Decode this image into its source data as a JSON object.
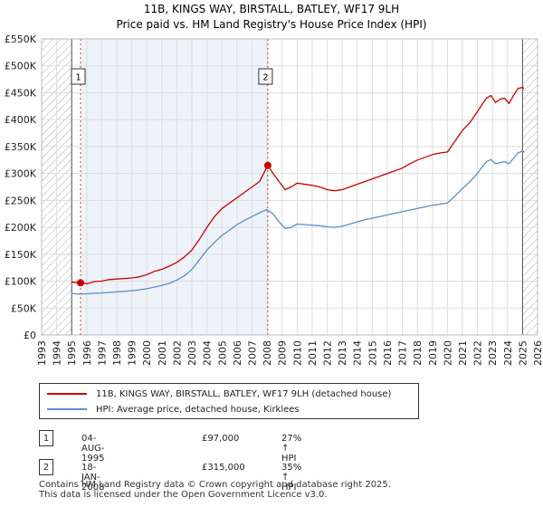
{
  "chart_data": {
    "type": "line",
    "title": "11B, KINGS WAY, BIRSTALL, BATLEY, WF17 9LH",
    "subtitle": "Price paid vs. HM Land Registry's House Price Index (HPI)",
    "xlim": [
      1993,
      2026
    ],
    "ylim": [
      0,
      550000
    ],
    "xticks": [
      "1993",
      "1994",
      "1995",
      "1996",
      "1997",
      "1998",
      "1999",
      "2000",
      "2001",
      "2002",
      "2003",
      "2004",
      "2005",
      "2006",
      "2007",
      "2008",
      "2009",
      "2010",
      "2011",
      "2012",
      "2013",
      "2014",
      "2015",
      "2016",
      "2017",
      "2018",
      "2019",
      "2020",
      "2021",
      "2022",
      "2023",
      "2024",
      "2025",
      "2026"
    ],
    "yticks": [
      "£0",
      "£50K",
      "£100K",
      "£150K",
      "£200K",
      "£250K",
      "£300K",
      "£350K",
      "£400K",
      "£450K",
      "£500K",
      "£550K"
    ],
    "hatch_before": 1995.0,
    "hatch_after": 2025.0,
    "series": [
      {
        "name": "11B, KINGS WAY, BIRSTALL, BATLEY, WF17 9LH (detached house)",
        "color": "#cc0000",
        "x": [
          1995.0,
          1995.59,
          1996.0,
          1996.5,
          1997.0,
          1997.5,
          1998.0,
          1998.5,
          1999.0,
          1999.5,
          2000.0,
          2000.5,
          2001.0,
          2001.5,
          2002.0,
          2002.5,
          2003.0,
          2003.5,
          2004.0,
          2004.5,
          2005.0,
          2005.5,
          2006.0,
          2006.5,
          2007.0,
          2007.5,
          2008.05,
          2008.4,
          2008.8,
          2009.2,
          2009.6,
          2010.0,
          2010.5,
          2011.0,
          2011.5,
          2012.0,
          2012.5,
          2013.0,
          2013.5,
          2014.0,
          2014.5,
          2015.0,
          2015.5,
          2016.0,
          2016.5,
          2017.0,
          2017.5,
          2018.0,
          2018.5,
          2019.0,
          2019.5,
          2020.0,
          2020.5,
          2021.0,
          2021.5,
          2022.0,
          2022.3,
          2022.6,
          2022.9,
          2023.2,
          2023.5,
          2023.8,
          2024.1,
          2024.4,
          2024.7,
          2025.0,
          2025.1
        ],
        "y": [
          98000,
          97000,
          95000,
          99000,
          100000,
          103000,
          104000,
          105000,
          106000,
          108000,
          112000,
          118000,
          122000,
          128000,
          135000,
          145000,
          158000,
          178000,
          200000,
          220000,
          235000,
          245000,
          255000,
          265000,
          275000,
          285000,
          315000,
          300000,
          285000,
          270000,
          275000,
          282000,
          280000,
          278000,
          275000,
          270000,
          268000,
          270000,
          275000,
          280000,
          285000,
          290000,
          295000,
          300000,
          305000,
          310000,
          318000,
          325000,
          330000,
          335000,
          338000,
          340000,
          360000,
          380000,
          395000,
          415000,
          428000,
          440000,
          445000,
          432000,
          438000,
          440000,
          430000,
          445000,
          458000,
          460000,
          458000
        ]
      },
      {
        "name": "HPI: Average price, detached house, Kirklees",
        "color": "#5b8fc9",
        "x": [
          1995.0,
          1995.5,
          1996.0,
          1996.5,
          1997.0,
          1997.5,
          1998.0,
          1998.5,
          1999.0,
          1999.5,
          2000.0,
          2000.5,
          2001.0,
          2001.5,
          2002.0,
          2002.5,
          2003.0,
          2003.5,
          2004.0,
          2004.5,
          2005.0,
          2005.5,
          2006.0,
          2006.5,
          2007.0,
          2007.5,
          2008.0,
          2008.4,
          2008.8,
          2009.2,
          2009.6,
          2010.0,
          2010.5,
          2011.0,
          2011.5,
          2012.0,
          2012.5,
          2013.0,
          2013.5,
          2014.0,
          2014.5,
          2015.0,
          2015.5,
          2016.0,
          2016.5,
          2017.0,
          2017.5,
          2018.0,
          2018.5,
          2019.0,
          2019.5,
          2020.0,
          2020.5,
          2021.0,
          2021.5,
          2022.0,
          2022.3,
          2022.6,
          2022.9,
          2023.2,
          2023.5,
          2023.8,
          2024.1,
          2024.4,
          2024.7,
          2025.0,
          2025.1
        ],
        "y": [
          77000,
          76000,
          76500,
          77500,
          78000,
          79000,
          80000,
          81000,
          82000,
          84000,
          86000,
          89000,
          92000,
          96000,
          102000,
          110000,
          122000,
          140000,
          158000,
          172000,
          185000,
          195000,
          205000,
          213000,
          220000,
          227000,
          233000,
          225000,
          210000,
          198000,
          200000,
          206000,
          205000,
          204000,
          203000,
          201000,
          200000,
          202000,
          206000,
          210000,
          214000,
          217000,
          220000,
          223000,
          226000,
          229000,
          232000,
          235000,
          238000,
          241000,
          243000,
          245000,
          258000,
          272000,
          285000,
          300000,
          312000,
          322000,
          326000,
          318000,
          320000,
          322000,
          318000,
          328000,
          338000,
          342000,
          340000
        ]
      }
    ],
    "sales": [
      {
        "label": "1",
        "x": 1995.59,
        "y": 97000
      },
      {
        "label": "2",
        "x": 2008.05,
        "y": 315000
      }
    ]
  },
  "legend": {
    "items": [
      {
        "label": "11B, KINGS WAY, BIRSTALL, BATLEY, WF17 9LH (detached house)",
        "color": "#cc0000"
      },
      {
        "label": "HPI: Average price, detached house, Kirklees",
        "color": "#5b8fc9"
      }
    ]
  },
  "sales_table": [
    {
      "num": "1",
      "date": "04-AUG-1995",
      "price": "£97,000",
      "hpi": "27% ↑ HPI"
    },
    {
      "num": "2",
      "date": "18-JAN-2008",
      "price": "£315,000",
      "hpi": "35% ↑ HPI"
    }
  ],
  "footer": {
    "line1": "Contains HM Land Registry data © Crown copyright and database right 2025.",
    "line2": "This data is licensed under the Open Government Licence v3.0."
  }
}
